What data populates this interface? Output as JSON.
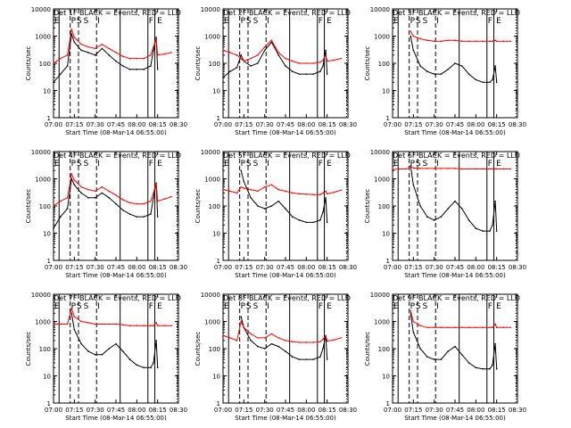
{
  "figure": {
    "xlabel": "Start Time (08-Mar-14 06:55:00)",
    "ylabel": "Counts/sec",
    "title_suffix": " BLACK = Events, RED = LLD",
    "x_ticks": [
      "07:00",
      "07:15",
      "07:30",
      "07:45",
      "08:00",
      "08:15",
      "08:30"
    ],
    "y_ticks": [
      "1",
      "10",
      "100",
      "1000",
      "10000"
    ],
    "event_labels": [
      "E",
      "P",
      "S",
      "S",
      "I",
      "F",
      "E"
    ],
    "colors": {
      "events": "#000000",
      "lld": "#ff0000",
      "axes": "#000000",
      "background": "#ffffff"
    }
  },
  "chart_data": [
    {
      "type": "line",
      "title": "Det 1F",
      "x": [
        "07:00",
        "07:05",
        "07:10",
        "07:13",
        "07:15",
        "07:20",
        "07:25",
        "07:30",
        "07:35",
        "07:40",
        "07:45",
        "07:50",
        "07:55",
        "08:00",
        "08:05",
        "08:10",
        "08:12",
        "08:14",
        "08:15",
        "08:20",
        "08:25"
      ],
      "series": [
        {
          "name": "BLACK = Events",
          "values": [
            20,
            40,
            80,
            1200,
            600,
            300,
            250,
            200,
            350,
            200,
            120,
            80,
            60,
            60,
            60,
            80,
            300,
            900,
            60,
            null,
            null
          ]
        },
        {
          "name": "RED = LLD",
          "values": [
            100,
            150,
            200,
            1800,
            900,
            500,
            400,
            350,
            500,
            350,
            250,
            180,
            150,
            150,
            150,
            200,
            400,
            800,
            200,
            220,
            250
          ]
        }
      ],
      "ylim": [
        1,
        10000
      ],
      "yscale": "log"
    },
    {
      "type": "line",
      "title": "Det 2F",
      "x": [
        "07:00",
        "07:05",
        "07:10",
        "07:13",
        "07:15",
        "07:20",
        "07:25",
        "07:30",
        "07:35",
        "07:40",
        "07:45",
        "07:50",
        "07:55",
        "08:00",
        "08:05",
        "08:10",
        "08:12",
        "08:14",
        "08:15",
        "08:20",
        "08:25"
      ],
      "series": [
        {
          "name": "BLACK = Events",
          "values": [
            30,
            50,
            70,
            200,
            120,
            80,
            100,
            300,
            600,
            200,
            80,
            50,
            40,
            40,
            40,
            50,
            80,
            300,
            40,
            null,
            null
          ]
        },
        {
          "name": "RED = LLD",
          "values": [
            300,
            250,
            200,
            150,
            120,
            150,
            200,
            400,
            700,
            250,
            150,
            120,
            100,
            100,
            100,
            110,
            130,
            200,
            120,
            130,
            150
          ]
        }
      ],
      "ylim": [
        1,
        10000
      ],
      "yscale": "log"
    },
    {
      "type": "line",
      "title": "Det 3F",
      "x": [
        "07:00",
        "07:05",
        "07:10",
        "07:13",
        "07:15",
        "07:20",
        "07:25",
        "07:30",
        "07:35",
        "07:40",
        "07:45",
        "07:50",
        "07:55",
        "08:00",
        "08:05",
        "08:10",
        "08:12",
        "08:14",
        "08:15",
        "08:20",
        "08:25"
      ],
      "series": [
        {
          "name": "BLACK = Events",
          "values": [
            null,
            null,
            null,
            1000,
            300,
            80,
            50,
            40,
            40,
            60,
            100,
            80,
            40,
            25,
            20,
            20,
            25,
            80,
            20,
            null,
            null
          ]
        },
        {
          "name": "RED = LLD",
          "values": [
            null,
            null,
            null,
            1500,
            1000,
            800,
            700,
            650,
            650,
            700,
            700,
            650,
            650,
            650,
            650,
            650,
            650,
            700,
            650,
            650,
            650
          ]
        }
      ],
      "ylim": [
        1,
        10000
      ],
      "yscale": "log"
    },
    {
      "type": "line",
      "title": "Det 4F",
      "x": [
        "07:00",
        "07:05",
        "07:10",
        "07:13",
        "07:15",
        "07:20",
        "07:25",
        "07:30",
        "07:35",
        "07:40",
        "07:45",
        "07:50",
        "07:55",
        "08:00",
        "08:05",
        "08:10",
        "08:12",
        "08:14",
        "08:15",
        "08:20",
        "08:25"
      ],
      "series": [
        {
          "name": "BLACK = Events",
          "values": [
            15,
            40,
            80,
            1000,
            600,
            300,
            200,
            200,
            300,
            200,
            120,
            70,
            50,
            40,
            40,
            50,
            200,
            700,
            40,
            null,
            null
          ]
        },
        {
          "name": "RED = LLD",
          "values": [
            100,
            150,
            200,
            1500,
            900,
            500,
            400,
            350,
            500,
            350,
            250,
            170,
            130,
            120,
            120,
            150,
            300,
            700,
            150,
            180,
            220
          ]
        }
      ],
      "ylim": [
        1,
        10000
      ],
      "yscale": "log"
    },
    {
      "type": "line",
      "title": "Det 5F",
      "x": [
        "07:00",
        "07:05",
        "07:10",
        "07:13",
        "07:15",
        "07:20",
        "07:25",
        "07:30",
        "07:35",
        "07:40",
        "07:45",
        "07:50",
        "07:55",
        "08:00",
        "08:05",
        "08:10",
        "08:12",
        "08:14",
        "08:15",
        "08:20",
        "08:25"
      ],
      "series": [
        {
          "name": "BLACK = Events",
          "values": [
            null,
            null,
            null,
            2000,
            800,
            200,
            100,
            80,
            100,
            150,
            80,
            40,
            30,
            25,
            25,
            30,
            60,
            200,
            25,
            null,
            null
          ]
        },
        {
          "name": "RED = LLD",
          "values": [
            400,
            350,
            300,
            500,
            450,
            400,
            350,
            500,
            600,
            400,
            350,
            300,
            280,
            270,
            260,
            260,
            300,
            350,
            280,
            320,
            380
          ]
        }
      ],
      "ylim": [
        1,
        10000
      ],
      "yscale": "log"
    },
    {
      "type": "line",
      "title": "Det 6F",
      "x": [
        "07:00",
        "07:05",
        "07:10",
        "07:13",
        "07:15",
        "07:20",
        "07:25",
        "07:30",
        "07:35",
        "07:40",
        "07:45",
        "07:50",
        "07:55",
        "08:00",
        "08:05",
        "08:10",
        "08:12",
        "08:14",
        "08:15",
        "08:20",
        "08:25"
      ],
      "series": [
        {
          "name": "BLACK = Events",
          "values": [
            null,
            null,
            null,
            3000,
            600,
            100,
            40,
            30,
            40,
            80,
            150,
            80,
            30,
            15,
            12,
            12,
            20,
            150,
            12,
            null,
            null
          ]
        },
        {
          "name": "RED = LLD",
          "values": [
            2200,
            2300,
            2300,
            2800,
            2500,
            2400,
            2400,
            2400,
            2400,
            2400,
            2400,
            2300,
            2300,
            2300,
            2300,
            2300,
            2300,
            2300,
            2300,
            2300,
            2300
          ]
        }
      ],
      "ylim": [
        1,
        10000
      ],
      "yscale": "log"
    },
    {
      "type": "line",
      "title": "Det 7F",
      "x": [
        "07:00",
        "07:05",
        "07:10",
        "07:13",
        "07:15",
        "07:20",
        "07:25",
        "07:30",
        "07:35",
        "07:40",
        "07:45",
        "07:50",
        "07:55",
        "08:00",
        "08:05",
        "08:10",
        "08:12",
        "08:14",
        "08:15",
        "08:20",
        "08:25"
      ],
      "series": [
        {
          "name": "BLACK = Events",
          "values": [
            null,
            null,
            null,
            2000,
            500,
            150,
            80,
            60,
            60,
            100,
            150,
            80,
            40,
            25,
            20,
            20,
            30,
            200,
            20,
            null,
            null
          ]
        },
        {
          "name": "RED = LLD",
          "values": [
            800,
            800,
            800,
            3000,
            1500,
            1000,
            900,
            800,
            800,
            800,
            800,
            750,
            700,
            700,
            700,
            700,
            700,
            900,
            700,
            700,
            700
          ]
        }
      ],
      "ylim": [
        1,
        10000
      ],
      "yscale": "log"
    },
    {
      "type": "line",
      "title": "Det 8F",
      "x": [
        "07:00",
        "07:05",
        "07:10",
        "07:13",
        "07:15",
        "07:20",
        "07:25",
        "07:30",
        "07:35",
        "07:40",
        "07:45",
        "07:50",
        "07:55",
        "08:00",
        "08:05",
        "08:10",
        "08:12",
        "08:14",
        "08:15",
        "08:20",
        "08:25"
      ],
      "series": [
        {
          "name": "BLACK = Events",
          "values": [
            null,
            null,
            null,
            1500,
            600,
            200,
            120,
            100,
            150,
            120,
            80,
            50,
            40,
            40,
            40,
            50,
            100,
            300,
            40,
            null,
            null
          ]
        },
        {
          "name": "RED = LLD",
          "values": [
            300,
            250,
            200,
            1000,
            600,
            350,
            250,
            250,
            350,
            250,
            200,
            180,
            170,
            170,
            170,
            180,
            220,
            300,
            190,
            210,
            250
          ]
        }
      ],
      "ylim": [
        1,
        10000
      ],
      "yscale": "log"
    },
    {
      "type": "line",
      "title": "Det 9F",
      "x": [
        "07:00",
        "07:05",
        "07:10",
        "07:13",
        "07:15",
        "07:20",
        "07:25",
        "07:30",
        "07:35",
        "07:40",
        "07:45",
        "07:50",
        "07:55",
        "08:00",
        "08:05",
        "08:10",
        "08:12",
        "08:14",
        "08:15",
        "08:20",
        "08:25"
      ],
      "series": [
        {
          "name": "BLACK = Events",
          "values": [
            null,
            null,
            null,
            2000,
            400,
            100,
            50,
            40,
            40,
            80,
            120,
            60,
            30,
            20,
            18,
            18,
            25,
            150,
            18,
            null,
            null
          ]
        },
        {
          "name": "RED = LLD",
          "values": [
            null,
            null,
            null,
            2500,
            1000,
            700,
            600,
            600,
            600,
            600,
            600,
            600,
            600,
            600,
            600,
            600,
            600,
            800,
            600,
            600,
            600
          ]
        }
      ],
      "ylim": [
        1,
        10000
      ],
      "yscale": "log"
    }
  ]
}
